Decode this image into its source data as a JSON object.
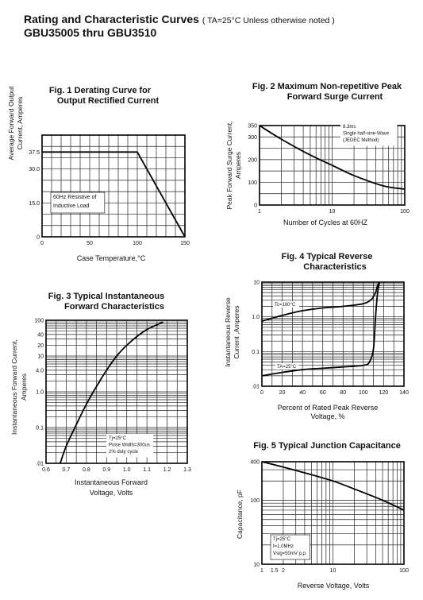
{
  "header": {
    "title": "Rating and  Characteristic Curves",
    "condition": "( TA=25°C Unless otherwise noted )",
    "subtitle": "GBU35005  thru  GBU3510"
  },
  "chart_data": [
    {
      "id": "fig1",
      "type": "line",
      "title": [
        "Fig. 1 Derating Curve for",
        "Output Rectified Current"
      ],
      "xlabel": "Case Temperature,°C",
      "ylabel": [
        "Average Forward Output",
        "Current, Amperes"
      ],
      "xscale": "linear",
      "yscale": "linear",
      "xlim": [
        0,
        150
      ],
      "ylim": [
        0,
        45
      ],
      "xticks": [
        0,
        50,
        100,
        150
      ],
      "xticklabels": [
        "0",
        "50",
        "100",
        "150"
      ],
      "yticks": [
        0,
        15,
        30,
        37.5
      ],
      "yticklabels": [
        "0",
        "15.0",
        "30.0",
        "37.5"
      ],
      "grid": true,
      "annotations": [
        "60Hz Resistive of",
        "Inductive Load"
      ],
      "series": [
        {
          "x": [
            0,
            100,
            150
          ],
          "y": [
            37.5,
            37.5,
            0
          ]
        }
      ]
    },
    {
      "id": "fig2",
      "type": "line",
      "title": [
        "Fig. 2 Maximum Non-repetitive Peak",
        "Forward Surge Current"
      ],
      "xlabel": "Number of Cycles at 60HZ",
      "ylabel": [
        "Peak Forward Surge Current,",
        "Amperes"
      ],
      "xscale": "log",
      "yscale": "linear",
      "xlim": [
        1,
        100
      ],
      "ylim": [
        0,
        350
      ],
      "xticks": [
        1,
        10,
        100
      ],
      "xticklabels": [
        "1",
        "10",
        "100"
      ],
      "yticks": [
        0,
        100,
        200,
        300,
        350
      ],
      "yticklabels": [
        "0",
        "100",
        "200",
        "300",
        "350"
      ],
      "grid": true,
      "annotations": [
        "8.3ms",
        "Single half-sine-Wave",
        "(JEDEC Method)"
      ],
      "series": [
        {
          "x": [
            1,
            2,
            5,
            10,
            20,
            50,
            100
          ],
          "y": [
            350,
            290,
            220,
            175,
            130,
            85,
            70
          ]
        }
      ]
    },
    {
      "id": "fig3",
      "type": "line",
      "title": [
        "Fig. 3 Typical Instantaneous",
        "Forward Characteristics"
      ],
      "xlabel": [
        "Instantaneous Forward",
        "Voltage, Volts"
      ],
      "ylabel": [
        "Instantaneous Forward Current,",
        "Amperes"
      ],
      "xscale": "linear",
      "yscale": "log",
      "xlim": [
        0.6,
        1.3
      ],
      "ylim": [
        0.01,
        100
      ],
      "xticks": [
        0.6,
        0.7,
        0.8,
        0.9,
        1.0,
        1.1,
        1.2,
        1.3
      ],
      "xticklabels": [
        "0.6",
        "0.7",
        "0.8",
        "0.9",
        "1.0",
        "1.1",
        "1.2",
        "1.3"
      ],
      "yticks": [
        0.01,
        0.1,
        1,
        4,
        10,
        20,
        40,
        100
      ],
      "yticklabels": [
        ".01",
        "0.1",
        "1.0",
        "4.0",
        "10",
        "20",
        "40",
        "100"
      ],
      "grid": true,
      "annotations": [
        "Tj=25°C",
        "Pulse Width=300us",
        "2% duty cycle"
      ],
      "series": [
        {
          "x": [
            0.67,
            0.7,
            0.75,
            0.8,
            0.85,
            0.9,
            0.95,
            1.0,
            1.05,
            1.1,
            1.15,
            1.18
          ],
          "y": [
            0.01,
            0.03,
            0.12,
            0.45,
            1.4,
            4,
            10,
            20,
            35,
            55,
            75,
            90
          ]
        }
      ]
    },
    {
      "id": "fig4",
      "type": "line",
      "title": [
        "Fig. 4 Typical Reverse",
        "Characteristics"
      ],
      "xlabel": [
        "Percent of Rated Peak Reverse",
        "Voltage, %"
      ],
      "ylabel": [
        "Instantaneous Reverse",
        "Current ,Amperes"
      ],
      "xscale": "linear",
      "yscale": "log",
      "xlim": [
        0,
        140
      ],
      "ylim": [
        0.01,
        10
      ],
      "xticks": [
        0,
        20,
        40,
        60,
        80,
        100,
        120,
        140
      ],
      "xticklabels": [
        "0",
        "20",
        "40",
        "60",
        "80",
        "100",
        "120",
        "140"
      ],
      "yticks": [
        0.01,
        0.1,
        1.0,
        10
      ],
      "yticklabels": [
        ".01",
        "0.1",
        "1.0",
        "10"
      ],
      "grid": true,
      "series": [
        {
          "name": "Tc=100°C",
          "x": [
            0,
            20,
            40,
            60,
            80,
            100,
            108,
            112,
            114,
            116
          ],
          "y": [
            0.75,
            1.1,
            1.5,
            1.8,
            2.0,
            2.4,
            3.2,
            5,
            8,
            10
          ]
        },
        {
          "name": "TA=25°C",
          "x": [
            0,
            20,
            40,
            60,
            80,
            100,
            106,
            110,
            112,
            114,
            116
          ],
          "y": [
            0.02,
            0.025,
            0.03,
            0.033,
            0.036,
            0.04,
            0.05,
            0.12,
            1.0,
            5,
            10
          ]
        }
      ]
    },
    {
      "id": "fig5",
      "type": "line",
      "title": [
        "Fig. 5 Typical Junction Capacitance"
      ],
      "xlabel": "Reverse Voltage, Volts",
      "ylabel": "Capacitance, pF",
      "xscale": "log",
      "yscale": "log",
      "xlim": [
        1,
        100
      ],
      "ylim": [
        10,
        400
      ],
      "xticks": [
        1,
        1.5,
        2,
        10,
        100
      ],
      "xticklabels": [
        "1",
        "1.5",
        "2",
        "10",
        "100"
      ],
      "yticks": [
        10,
        100,
        400
      ],
      "yticklabels": [
        "10",
        "100",
        "400"
      ],
      "grid": true,
      "annotations": [
        "Tj=25°C",
        "f=1.0MHz",
        "Vsig=50mV p.p."
      ],
      "series": [
        {
          "x": [
            1,
            2,
            5,
            10,
            20,
            50,
            100
          ],
          "y": [
            400,
            330,
            250,
            200,
            150,
            100,
            70
          ]
        }
      ]
    }
  ]
}
